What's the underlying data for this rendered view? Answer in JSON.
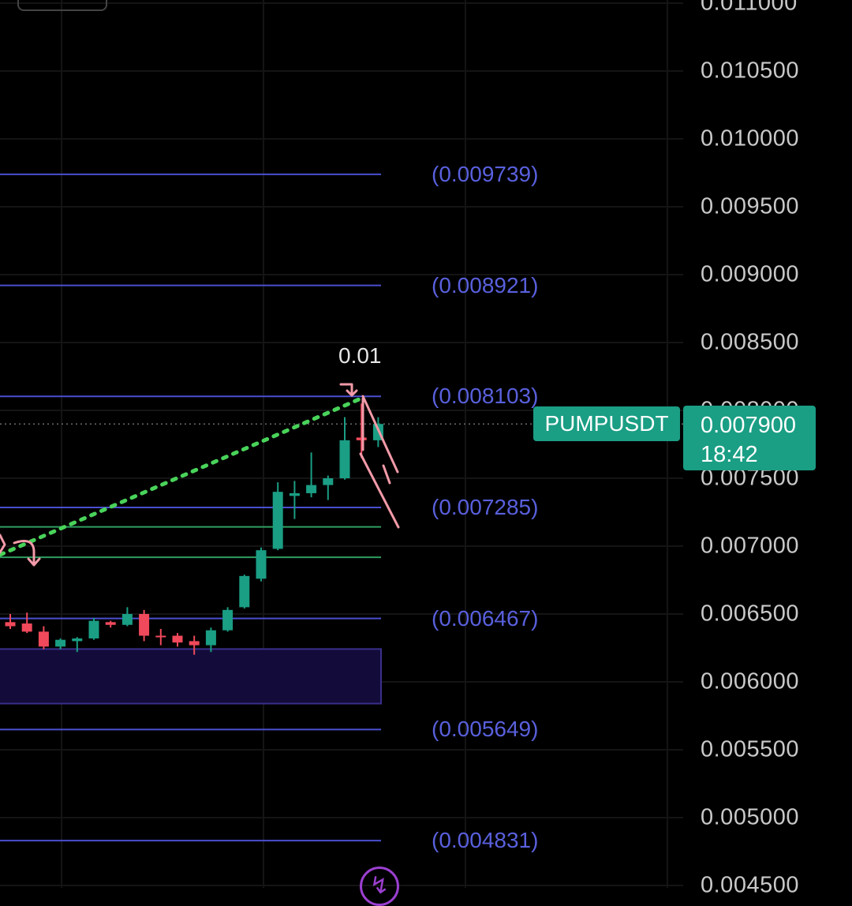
{
  "chart_data": {
    "type": "candlestick",
    "symbol": "PUMPUSDT",
    "current_price": "0.007900",
    "countdown": "18:42",
    "annotation": "0.01",
    "y_ticks": [
      "0.011000",
      "0.010500",
      "0.010000",
      "0.009500",
      "0.009000",
      "0.008500",
      "0.008000",
      "0.007500",
      "0.007000",
      "0.006500",
      "0.006000",
      "0.005500",
      "0.005000",
      "0.004500"
    ],
    "ylim": [
      0.0044,
      0.01105
    ],
    "fib_levels": [
      {
        "label": "(0.009739)",
        "value": 0.009739
      },
      {
        "label": "(0.008921)",
        "value": 0.008921
      },
      {
        "label": "(0.008103)",
        "value": 0.008103
      },
      {
        "label": "(0.007285)",
        "value": 0.007285
      },
      {
        "label": "(0.006467)",
        "value": 0.006467
      },
      {
        "label": "(0.005649)",
        "value": 0.005649
      },
      {
        "label": "(0.004831)",
        "value": 0.004831
      }
    ],
    "support_lines": [
      0.007142,
      0.006918
    ],
    "zone": {
      "top": 0.006242,
      "bottom": 0.00584
    },
    "candles": [
      {
        "o": 0.00644,
        "h": 0.0065,
        "l": 0.00639,
        "c": 0.00641
      },
      {
        "o": 0.00643,
        "h": 0.00651,
        "l": 0.00636,
        "c": 0.00637
      },
      {
        "o": 0.00637,
        "h": 0.00641,
        "l": 0.00624,
        "c": 0.00626
      },
      {
        "o": 0.00626,
        "h": 0.00632,
        "l": 0.00624,
        "c": 0.00631
      },
      {
        "o": 0.0063,
        "h": 0.00633,
        "l": 0.00622,
        "c": 0.00632
      },
      {
        "o": 0.00632,
        "h": 0.00647,
        "l": 0.00631,
        "c": 0.00645
      },
      {
        "o": 0.00644,
        "h": 0.00645,
        "l": 0.0064,
        "c": 0.00642
      },
      {
        "o": 0.00642,
        "h": 0.00655,
        "l": 0.00641,
        "c": 0.0065
      },
      {
        "o": 0.0065,
        "h": 0.00653,
        "l": 0.0063,
        "c": 0.00634
      },
      {
        "o": 0.00634,
        "h": 0.00639,
        "l": 0.00627,
        "c": 0.00633
      },
      {
        "o": 0.00634,
        "h": 0.00636,
        "l": 0.00626,
        "c": 0.00629
      },
      {
        "o": 0.0063,
        "h": 0.00634,
        "l": 0.0062,
        "c": 0.00627
      },
      {
        "o": 0.00627,
        "h": 0.0064,
        "l": 0.00622,
        "c": 0.00638
      },
      {
        "o": 0.00638,
        "h": 0.00655,
        "l": 0.00637,
        "c": 0.00653
      },
      {
        "o": 0.00655,
        "h": 0.00679,
        "l": 0.00654,
        "c": 0.00678
      },
      {
        "o": 0.00676,
        "h": 0.00699,
        "l": 0.00674,
        "c": 0.00697
      },
      {
        "o": 0.00698,
        "h": 0.00747,
        "l": 0.00697,
        "c": 0.0074
      },
      {
        "o": 0.00737,
        "h": 0.00748,
        "l": 0.0072,
        "c": 0.00739
      },
      {
        "o": 0.00739,
        "h": 0.00769,
        "l": 0.00736,
        "c": 0.00745
      },
      {
        "o": 0.00745,
        "h": 0.00752,
        "l": 0.00734,
        "c": 0.0075
      },
      {
        "o": 0.0075,
        "h": 0.00795,
        "l": 0.00749,
        "c": 0.00778
      },
      {
        "o": 0.0078,
        "h": 0.00805,
        "l": 0.00765,
        "c": 0.00778
      },
      {
        "o": 0.00778,
        "h": 0.00795,
        "l": 0.00773,
        "c": 0.0079
      }
    ]
  },
  "colors": {
    "up": "#1a9e84",
    "down": "#f0495b",
    "fib_line": "#4a4fd0",
    "fib_label": "#5960dd",
    "support_line": "#2f9e60",
    "trendline": "#49d35a",
    "zone_fill": "#130c3a",
    "zone_border": "#3a2f8a",
    "arrow": "#f29aa8",
    "grid": "#141414"
  }
}
